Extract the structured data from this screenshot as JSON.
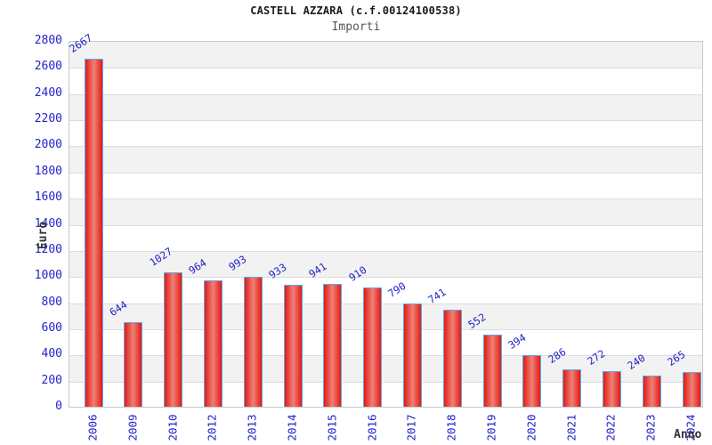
{
  "chart_data": {
    "type": "bar",
    "title": "CASTELL AZZARA (c.f.00124100538)",
    "subtitle": "Importi",
    "xlabel": "Anno",
    "ylabel": "Euro",
    "categories": [
      "2006",
      "2009",
      "2010",
      "2012",
      "2013",
      "2014",
      "2015",
      "2016",
      "2017",
      "2018",
      "2019",
      "2020",
      "2021",
      "2022",
      "2023",
      "2024"
    ],
    "values": [
      2667,
      644,
      1027,
      964,
      993,
      933,
      941,
      910,
      790,
      741,
      552,
      394,
      286,
      272,
      240,
      265
    ],
    "ylim": [
      0,
      2800
    ],
    "ytick_step": 200,
    "grid": "horizontal-alternating-bands",
    "legend": "none",
    "bar_value_labels_rotated_deg": -33,
    "x_tick_labels_rotated_deg": -90,
    "colors": {
      "label_blue": "#2222cc",
      "bar_edge": "#e41b12",
      "bar_center": "#ee8178",
      "bar_border": "#58aaef",
      "band_gray": "#f2f2f2",
      "plot_border": "#c9c9c9",
      "axis_title": "#333333",
      "title": "#1a1a1a",
      "subtitle": "#555555"
    }
  }
}
